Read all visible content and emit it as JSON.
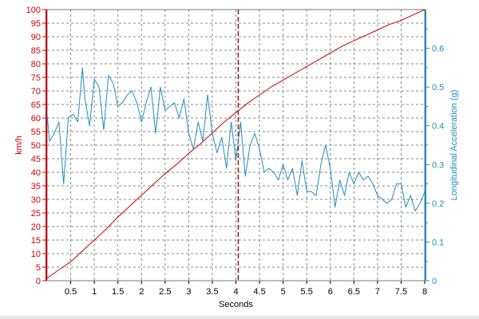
{
  "chart_data": {
    "type": "line",
    "title": "",
    "xlabel": "Seconds",
    "ylabel_left": "km/h",
    "ylabel_right": "Longitudinal Acceleration (g)",
    "xlim": [
      0,
      8
    ],
    "ylim_left": [
      0,
      100
    ],
    "ylim_right": [
      0,
      0.7
    ],
    "grid": true,
    "x_ticks": [
      "0.5",
      "1",
      "1.5",
      "2",
      "2.5",
      "3",
      "3.5",
      "4",
      "4.5",
      "5",
      "5.5",
      "6",
      "6.5",
      "7",
      "7.5",
      "8"
    ],
    "y_left_ticks": [
      "0",
      "5",
      "10",
      "15",
      "20",
      "25",
      "30",
      "35",
      "40",
      "45",
      "50",
      "55",
      "60",
      "65",
      "70",
      "75",
      "80",
      "85",
      "90",
      "95",
      "100"
    ],
    "y_right_ticks": [
      "0",
      "0.1",
      "0.2",
      "0.3",
      "0.4",
      "0.5",
      "0.6"
    ],
    "cursor_x": 4.05,
    "colors": {
      "speed": "#cc0000",
      "accel": "#1f8ec5",
      "left_axis": "#cc0000",
      "right_axis": "#1f8ec5",
      "grid": "#8a8a8a",
      "cursor": "#8b1a1a"
    },
    "series": [
      {
        "axis": "left",
        "x": [
          0,
          0.25,
          0.5,
          0.75,
          1,
          1.25,
          1.5,
          1.75,
          2,
          2.25,
          2.5,
          2.75,
          3,
          3.25,
          3.5,
          3.75,
          4,
          4.25,
          4.5,
          4.75,
          5,
          5.25,
          5.5,
          5.75,
          6,
          6.25,
          6.5,
          6.75,
          7,
          7.25,
          7.5,
          7.75,
          8
        ],
        "values": [
          1,
          4,
          7,
          11,
          15,
          19,
          23.5,
          27.5,
          31.5,
          35.5,
          39.5,
          43,
          47,
          50.5,
          54.5,
          58.5,
          62,
          65.5,
          68.5,
          71.5,
          74,
          76.5,
          79,
          81.5,
          84,
          86.5,
          88.5,
          90.5,
          92.5,
          94.5,
          96,
          98,
          100
        ]
      },
      {
        "axis": "right",
        "x": [
          0,
          0.05,
          0.15,
          0.25,
          0.35,
          0.45,
          0.55,
          0.65,
          0.75,
          0.8,
          0.9,
          1,
          1.1,
          1.2,
          1.3,
          1.4,
          1.5,
          1.6,
          1.7,
          1.8,
          1.9,
          2,
          2.1,
          2.2,
          2.3,
          2.4,
          2.5,
          2.6,
          2.7,
          2.8,
          2.9,
          3,
          3.1,
          3.2,
          3.3,
          3.4,
          3.5,
          3.6,
          3.7,
          3.8,
          3.9,
          4,
          4.1,
          4.2,
          4.3,
          4.4,
          4.5,
          4.6,
          4.7,
          4.8,
          4.9,
          5,
          5.1,
          5.2,
          5.3,
          5.4,
          5.5,
          5.6,
          5.7,
          5.8,
          5.9,
          6,
          6.1,
          6.2,
          6.3,
          6.4,
          6.5,
          6.6,
          6.7,
          6.8,
          6.9,
          7,
          7.1,
          7.2,
          7.3,
          7.4,
          7.5,
          7.6,
          7.7,
          7.8,
          7.9,
          8
        ],
        "values": [
          0.43,
          0.36,
          0.38,
          0.41,
          0.25,
          0.42,
          0.43,
          0.41,
          0.55,
          0.47,
          0.4,
          0.52,
          0.5,
          0.39,
          0.53,
          0.51,
          0.45,
          0.46,
          0.48,
          0.49,
          0.46,
          0.41,
          0.46,
          0.5,
          0.38,
          0.5,
          0.44,
          0.45,
          0.46,
          0.42,
          0.47,
          0.38,
          0.34,
          0.41,
          0.36,
          0.48,
          0.38,
          0.33,
          0.37,
          0.29,
          0.41,
          0.31,
          0.41,
          0.27,
          0.35,
          0.38,
          0.34,
          0.28,
          0.29,
          0.28,
          0.26,
          0.3,
          0.26,
          0.29,
          0.22,
          0.31,
          0.23,
          0.23,
          0.22,
          0.3,
          0.35,
          0.29,
          0.19,
          0.26,
          0.22,
          0.28,
          0.25,
          0.28,
          0.26,
          0.27,
          0.25,
          0.22,
          0.21,
          0.2,
          0.21,
          0.25,
          0.25,
          0.19,
          0.22,
          0.18,
          0.2,
          0.23
        ]
      }
    ]
  }
}
